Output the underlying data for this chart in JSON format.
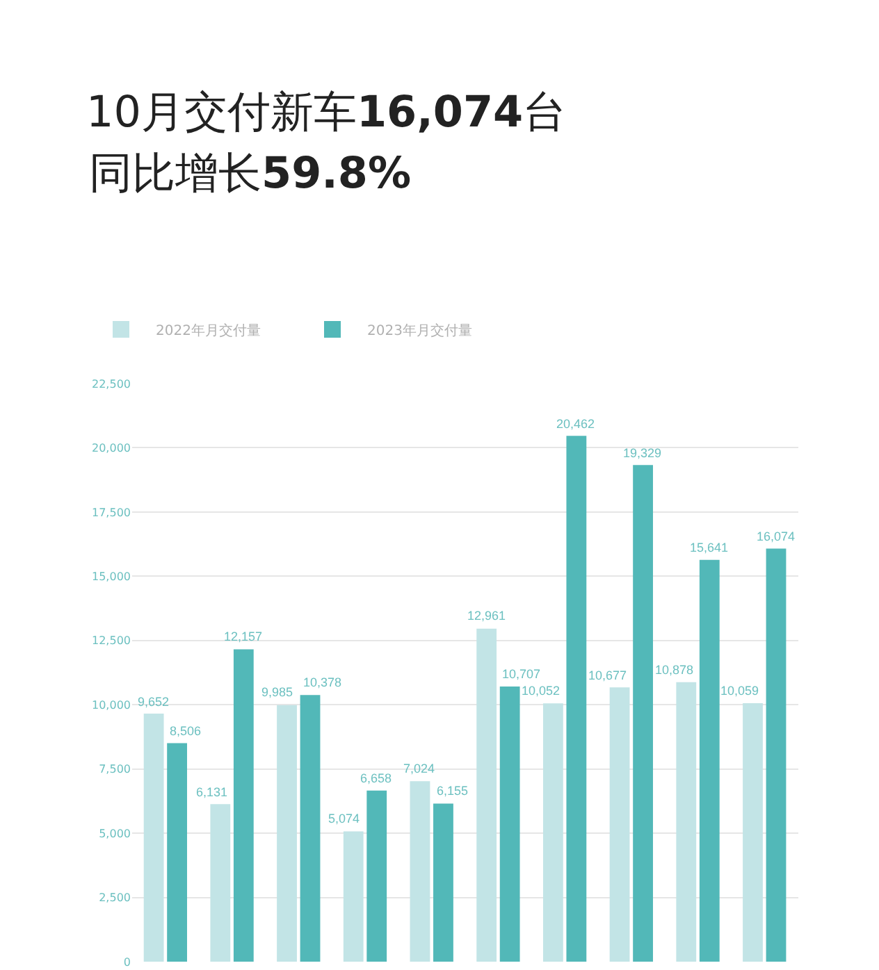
{
  "chart_data": {
    "type": "bar",
    "title": "10月交付新车16,074台",
    "subtitle": "同比增长59.8%",
    "categories": [
      null,
      null,
      null,
      null,
      null,
      null,
      null,
      null,
      null,
      null
    ],
    "series": [
      {
        "name": "2022年月交付量",
        "color": "#c2e4e6",
        "values": [
          9652,
          6131,
          9985,
          5074,
          7024,
          12961,
          10052,
          10677,
          10878,
          10059
        ],
        "value_labels": [
          "9,652",
          "6,131",
          "9,985",
          "5,074",
          "7,024",
          "12,961",
          "10,052",
          "10,677",
          "10,878",
          "10,059"
        ]
      },
      {
        "name": "2023年月交付量",
        "color": "#52b8b8",
        "values": [
          8506,
          12157,
          10378,
          6658,
          6155,
          10707,
          20462,
          19329,
          15641,
          16074
        ],
        "value_labels": [
          "8,506",
          "12,157",
          "10,378",
          "6,658",
          "6,155",
          "10,707",
          "20,462",
          "19,329",
          "15,641",
          "16,074"
        ]
      }
    ],
    "ylim": [
      0,
      22500
    ],
    "yticks": [
      0,
      {
        "value": 2500,
        "label": "2,500"
      },
      {
        "value": 5000,
        "label": "5,000"
      },
      {
        "value": 7500,
        "label": "7,500"
      },
      {
        "value": 10000,
        "label": "10,000"
      },
      {
        "value": 12500,
        "label": "12,500"
      },
      {
        "value": 15000,
        "label": "15,000"
      },
      {
        "value": 17500,
        "label": "17,500"
      },
      {
        "value": 20000,
        "label": "20,000"
      },
      {
        "value": 22500,
        "label": "22,500"
      }
    ],
    "grid": "y",
    "legend": "top left",
    "tick_labels": "y"
  }
}
